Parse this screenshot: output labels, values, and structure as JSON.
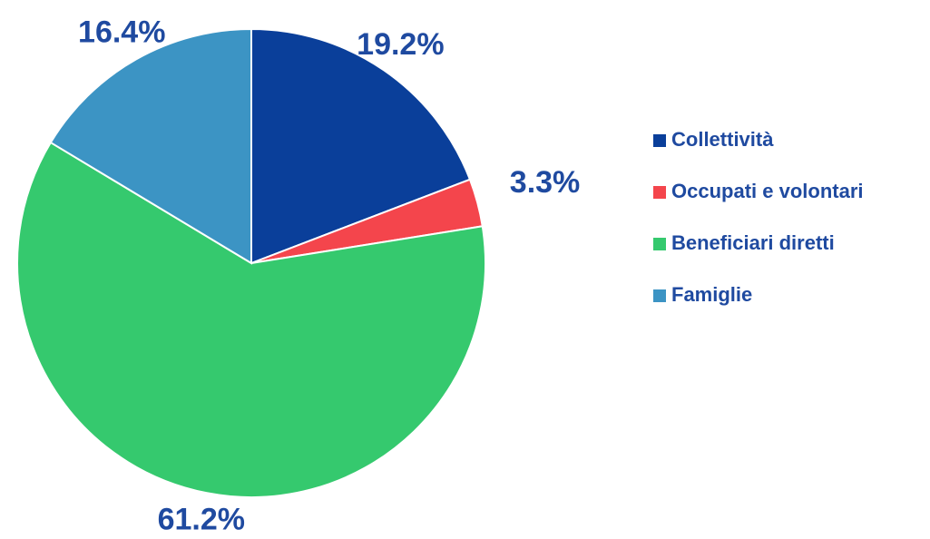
{
  "chart_data": {
    "type": "pie",
    "categories": [
      "Collettività",
      "Occupati e volontari",
      "Beneficiari diretti",
      "Famiglie"
    ],
    "values": [
      19.2,
      3.3,
      61.2,
      16.4
    ],
    "value_labels": [
      "19.2%",
      "3.3%",
      "61.2%",
      "16.4%"
    ],
    "colors": [
      "#0a3f9a",
      "#f4454c",
      "#35c96e",
      "#3c94c4"
    ],
    "legend": "right"
  }
}
